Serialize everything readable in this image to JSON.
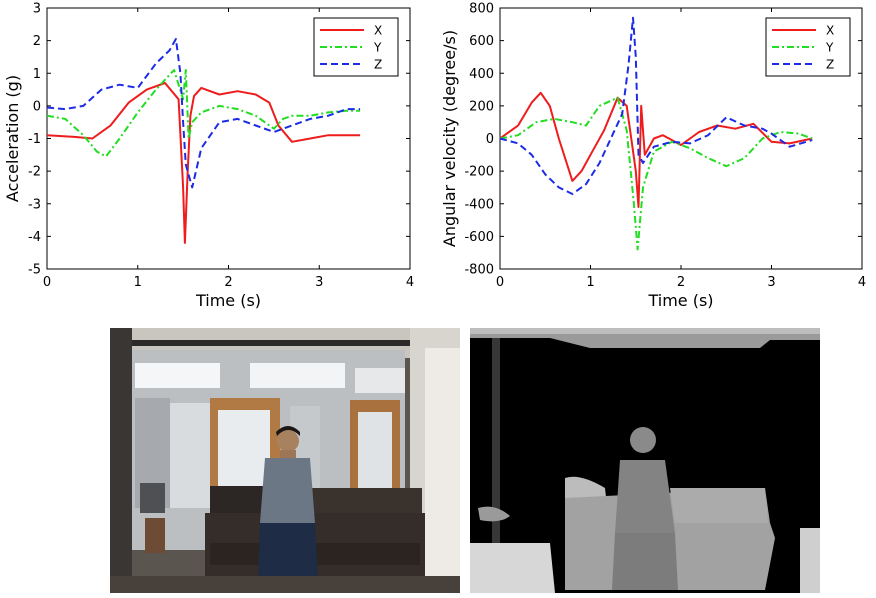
{
  "chart_data": [
    {
      "type": "line",
      "title": "",
      "xlabel": "Time (s)",
      "ylabel": "Acceleration (g)",
      "xlim": [
        0,
        4
      ],
      "ylim": [
        -5,
        3
      ],
      "xticks": [
        "0",
        "1",
        "2",
        "3",
        "4"
      ],
      "yticks": [
        "-5",
        "-4",
        "-3",
        "-2",
        "-1",
        "0",
        "1",
        "2",
        "3"
      ],
      "grid": false,
      "legend_position": "top-right",
      "series": [
        {
          "name": "X",
          "color": "#ee1c1c",
          "dash": "solid",
          "x": [
            0,
            0.3,
            0.5,
            0.7,
            0.9,
            1.1,
            1.3,
            1.45,
            1.5,
            1.52,
            1.55,
            1.58,
            1.62,
            1.7,
            1.9,
            2.1,
            2.3,
            2.45,
            2.55,
            2.7,
            2.9,
            3.1,
            3.3,
            3.45
          ],
          "y": [
            -0.9,
            -0.95,
            -1.0,
            -0.6,
            0.1,
            0.5,
            0.7,
            0.2,
            -2.5,
            -4.2,
            -2.0,
            -0.3,
            0.3,
            0.55,
            0.35,
            0.45,
            0.35,
            0.1,
            -0.6,
            -1.1,
            -1.0,
            -0.9,
            -0.9,
            -0.9
          ]
        },
        {
          "name": "Y",
          "color": "#22dd22",
          "dash": "dashdot",
          "x": [
            0,
            0.2,
            0.4,
            0.55,
            0.65,
            0.8,
            1.0,
            1.2,
            1.4,
            1.5,
            1.53,
            1.56,
            1.6,
            1.7,
            1.9,
            2.1,
            2.3,
            2.5,
            2.6,
            2.7,
            2.9,
            3.1,
            3.3,
            3.45
          ],
          "y": [
            -0.3,
            -0.4,
            -0.9,
            -1.4,
            -1.55,
            -1.0,
            -0.2,
            0.5,
            1.1,
            0.2,
            1.1,
            -1.0,
            -0.5,
            -0.2,
            0.0,
            -0.1,
            -0.3,
            -0.7,
            -0.4,
            -0.3,
            -0.3,
            -0.2,
            -0.15,
            -0.15
          ]
        },
        {
          "name": "Z",
          "color": "#1c2be8",
          "dash": "dashed",
          "x": [
            0,
            0.2,
            0.4,
            0.6,
            0.8,
            1.0,
            1.2,
            1.35,
            1.42,
            1.47,
            1.5,
            1.53,
            1.6,
            1.7,
            1.9,
            2.1,
            2.3,
            2.5,
            2.7,
            2.9,
            3.1,
            3.3,
            3.45
          ],
          "y": [
            -0.05,
            -0.1,
            0.0,
            0.5,
            0.65,
            0.55,
            1.3,
            1.7,
            2.05,
            1.0,
            -0.5,
            -1.8,
            -2.5,
            -1.3,
            -0.5,
            -0.4,
            -0.6,
            -0.8,
            -0.6,
            -0.4,
            -0.3,
            -0.1,
            -0.1
          ]
        }
      ]
    },
    {
      "type": "line",
      "title": "",
      "xlabel": "Time (s)",
      "ylabel": "Angular velocity (degree/s)",
      "xlim": [
        0,
        4
      ],
      "ylim": [
        -800,
        800
      ],
      "xticks": [
        "0",
        "1",
        "2",
        "3",
        "4"
      ],
      "yticks": [
        "-800",
        "-600",
        "-400",
        "-200",
        "0",
        "200",
        "400",
        "600",
        "800"
      ],
      "grid": false,
      "legend_position": "top-right",
      "series": [
        {
          "name": "X",
          "color": "#ee1c1c",
          "dash": "solid",
          "x": [
            0,
            0.2,
            0.35,
            0.45,
            0.55,
            0.65,
            0.8,
            0.9,
            1.0,
            1.15,
            1.3,
            1.4,
            1.5,
            1.53,
            1.56,
            1.6,
            1.7,
            1.8,
            2.0,
            2.2,
            2.4,
            2.6,
            2.8,
            3.0,
            3.2,
            3.45
          ],
          "y": [
            0,
            80,
            220,
            280,
            200,
            0,
            -260,
            -200,
            -100,
            50,
            250,
            200,
            -200,
            -420,
            200,
            -100,
            0,
            20,
            -40,
            40,
            80,
            60,
            90,
            -20,
            -30,
            0
          ]
        },
        {
          "name": "Y",
          "color": "#22dd22",
          "dash": "dashdot",
          "x": [
            0,
            0.2,
            0.4,
            0.6,
            0.8,
            0.95,
            1.1,
            1.3,
            1.4,
            1.48,
            1.52,
            1.58,
            1.7,
            1.9,
            2.1,
            2.3,
            2.5,
            2.7,
            2.9,
            3.1,
            3.3,
            3.45
          ],
          "y": [
            0,
            20,
            100,
            120,
            100,
            80,
            200,
            250,
            50,
            -400,
            -680,
            -300,
            -80,
            -20,
            -60,
            -120,
            -170,
            -120,
            0,
            40,
            30,
            0
          ]
        },
        {
          "name": "Z",
          "color": "#1c2be8",
          "dash": "dashed",
          "x": [
            0,
            0.2,
            0.35,
            0.5,
            0.65,
            0.8,
            0.95,
            1.1,
            1.25,
            1.35,
            1.42,
            1.47,
            1.5,
            1.53,
            1.58,
            1.7,
            1.9,
            2.1,
            2.3,
            2.5,
            2.7,
            2.9,
            3.0,
            3.2,
            3.45
          ],
          "y": [
            0,
            -30,
            -100,
            -220,
            -300,
            -340,
            -280,
            -150,
            30,
            150,
            450,
            740,
            500,
            -100,
            -150,
            -50,
            -20,
            -30,
            20,
            130,
            80,
            60,
            30,
            -50,
            -10
          ]
        }
      ]
    }
  ],
  "images": {
    "rgb": {
      "name": "rgb-frame-person-on-sofa"
    },
    "depth": {
      "name": "depth-frame-person-on-sofa"
    }
  }
}
